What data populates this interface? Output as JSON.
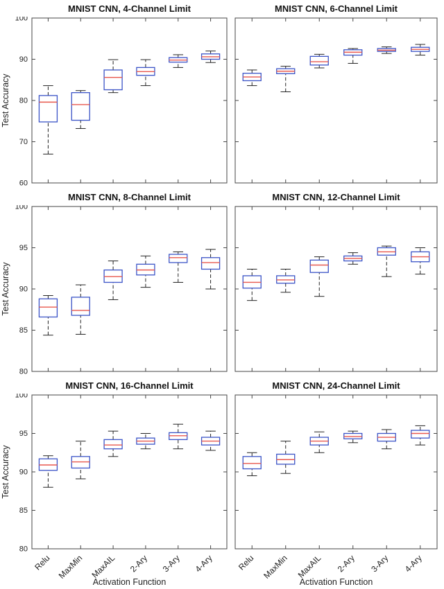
{
  "figure": {
    "xlabel": "Activation Function",
    "ylabel": "Test Accuracy",
    "categories": [
      "Relu",
      "MaxMin",
      "MaxAIL",
      "2-Ary",
      "3-Ary",
      "4-Ary"
    ],
    "colors": {
      "box": "#3a53c7",
      "median": "#e8574d",
      "whisker": "#222222",
      "frame": "#444444"
    }
  },
  "chart_data": [
    {
      "type": "boxplot",
      "title": "MNIST CNN, 4-Channel Limit",
      "ylabel": "Test Accuracy",
      "ylim": [
        60,
        100
      ],
      "yticks": [
        60,
        70,
        80,
        90,
        100
      ],
      "categories": [
        "Relu",
        "MaxMin",
        "MaxAIL",
        "2-Ary",
        "3-Ary",
        "4-Ary"
      ],
      "boxes": [
        {
          "label": "Relu",
          "whislo": 67.0,
          "q1": 74.8,
          "med": 79.6,
          "q3": 81.2,
          "whishi": 83.6
        },
        {
          "label": "MaxMin",
          "whislo": 73.2,
          "q1": 75.2,
          "med": 79.0,
          "q3": 81.9,
          "whishi": 82.4
        },
        {
          "label": "MaxAIL",
          "whislo": 81.9,
          "q1": 82.6,
          "med": 85.6,
          "q3": 87.4,
          "whishi": 89.9
        },
        {
          "label": "2-Ary",
          "whislo": 83.6,
          "q1": 86.1,
          "med": 87.0,
          "q3": 88.0,
          "whishi": 89.9
        },
        {
          "label": "3-Ary",
          "whislo": 88.0,
          "q1": 89.3,
          "med": 89.8,
          "q3": 90.4,
          "whishi": 91.1
        },
        {
          "label": "4-Ary",
          "whislo": 89.2,
          "q1": 90.0,
          "med": 90.6,
          "q3": 91.3,
          "whishi": 92.0
        }
      ]
    },
    {
      "type": "boxplot",
      "title": "MNIST CNN, 6-Channel Limit",
      "ylim": [
        60,
        100
      ],
      "yticks": [
        60,
        70,
        80,
        90,
        100
      ],
      "categories": [
        "Relu",
        "MaxMin",
        "MaxAIL",
        "2-Ary",
        "3-Ary",
        "4-Ary"
      ],
      "boxes": [
        {
          "label": "Relu",
          "whislo": 83.6,
          "q1": 84.8,
          "med": 85.7,
          "q3": 86.6,
          "whishi": 87.4
        },
        {
          "label": "MaxMin",
          "whislo": 82.1,
          "q1": 86.5,
          "med": 87.1,
          "q3": 87.7,
          "whishi": 88.3
        },
        {
          "label": "MaxAIL",
          "whislo": 87.9,
          "q1": 88.6,
          "med": 89.4,
          "q3": 90.7,
          "whishi": 91.2
        },
        {
          "label": "2-Ary",
          "whislo": 89.0,
          "q1": 91.0,
          "med": 91.7,
          "q3": 92.3,
          "whishi": 92.6
        },
        {
          "label": "3-Ary",
          "whislo": 91.4,
          "q1": 91.9,
          "med": 92.2,
          "q3": 92.6,
          "whishi": 93.0
        },
        {
          "label": "4-Ary",
          "whislo": 91.0,
          "q1": 91.9,
          "med": 92.4,
          "q3": 92.9,
          "whishi": 93.6
        }
      ]
    },
    {
      "type": "boxplot",
      "title": "MNIST CNN, 8-Channel Limit",
      "ylabel": "Test Accuracy",
      "ylim": [
        80,
        100
      ],
      "yticks": [
        80,
        85,
        90,
        95,
        100
      ],
      "categories": [
        "Relu",
        "MaxMin",
        "MaxAIL",
        "2-Ary",
        "3-Ary",
        "4-Ary"
      ],
      "boxes": [
        {
          "label": "Relu",
          "whislo": 84.4,
          "q1": 86.6,
          "med": 87.8,
          "q3": 88.8,
          "whishi": 89.2
        },
        {
          "label": "MaxMin",
          "whislo": 84.5,
          "q1": 86.8,
          "med": 87.4,
          "q3": 89.0,
          "whishi": 90.5
        },
        {
          "label": "MaxAIL",
          "whislo": 88.7,
          "q1": 90.8,
          "med": 91.5,
          "q3": 92.3,
          "whishi": 93.4
        },
        {
          "label": "2-Ary",
          "whislo": 90.2,
          "q1": 91.7,
          "med": 92.3,
          "q3": 93.0,
          "whishi": 94.0
        },
        {
          "label": "3-Ary",
          "whislo": 90.8,
          "q1": 93.2,
          "med": 93.8,
          "q3": 94.2,
          "whishi": 94.5
        },
        {
          "label": "4-Ary",
          "whislo": 90.0,
          "q1": 92.4,
          "med": 93.2,
          "q3": 93.8,
          "whishi": 94.8
        }
      ]
    },
    {
      "type": "boxplot",
      "title": "MNIST CNN, 12-Channel Limit",
      "ylim": [
        80,
        100
      ],
      "yticks": [
        80,
        85,
        90,
        95,
        100
      ],
      "categories": [
        "Relu",
        "MaxMin",
        "MaxAIL",
        "2-Ary",
        "3-Ary",
        "4-Ary"
      ],
      "boxes": [
        {
          "label": "Relu",
          "whislo": 88.6,
          "q1": 90.1,
          "med": 90.8,
          "q3": 91.6,
          "whishi": 92.4
        },
        {
          "label": "MaxMin",
          "whislo": 89.6,
          "q1": 90.7,
          "med": 91.1,
          "q3": 91.6,
          "whishi": 92.4
        },
        {
          "label": "MaxAIL",
          "whislo": 89.1,
          "q1": 92.0,
          "med": 92.9,
          "q3": 93.5,
          "whishi": 93.9
        },
        {
          "label": "2-Ary",
          "whislo": 93.0,
          "q1": 93.4,
          "med": 93.7,
          "q3": 94.0,
          "whishi": 94.4
        },
        {
          "label": "3-Ary",
          "whislo": 91.5,
          "q1": 94.1,
          "med": 94.5,
          "q3": 95.0,
          "whishi": 95.2
        },
        {
          "label": "4-Ary",
          "whislo": 91.8,
          "q1": 93.3,
          "med": 93.9,
          "q3": 94.5,
          "whishi": 95.0
        }
      ]
    },
    {
      "type": "boxplot",
      "title": "MNIST CNN, 16-Channel Limit",
      "ylabel": "Test Accuracy",
      "xlabel": "Activation Function",
      "ylim": [
        80,
        100
      ],
      "yticks": [
        80,
        85,
        90,
        95,
        100
      ],
      "categories": [
        "Relu",
        "MaxMin",
        "MaxAIL",
        "2-Ary",
        "3-Ary",
        "4-Ary"
      ],
      "boxes": [
        {
          "label": "Relu",
          "whislo": 88.0,
          "q1": 90.2,
          "med": 90.9,
          "q3": 91.7,
          "whishi": 92.1
        },
        {
          "label": "MaxMin",
          "whislo": 89.1,
          "q1": 90.5,
          "med": 91.3,
          "q3": 92.0,
          "whishi": 94.0
        },
        {
          "label": "MaxAIL",
          "whislo": 92.0,
          "q1": 93.0,
          "med": 93.5,
          "q3": 94.2,
          "whishi": 95.3
        },
        {
          "label": "2-Ary",
          "whislo": 93.0,
          "q1": 93.6,
          "med": 94.0,
          "q3": 94.4,
          "whishi": 95.0
        },
        {
          "label": "3-Ary",
          "whislo": 93.0,
          "q1": 94.2,
          "med": 94.7,
          "q3": 95.1,
          "whishi": 96.2
        },
        {
          "label": "4-Ary",
          "whislo": 92.8,
          "q1": 93.5,
          "med": 94.0,
          "q3": 94.5,
          "whishi": 95.3
        }
      ]
    },
    {
      "type": "boxplot",
      "title": "MNIST CNN, 24-Channel Limit",
      "xlabel": "Activation Function",
      "ylim": [
        80,
        100
      ],
      "yticks": [
        80,
        85,
        90,
        95,
        100
      ],
      "categories": [
        "Relu",
        "MaxMin",
        "MaxAIL",
        "2-Ary",
        "3-Ary",
        "4-Ary"
      ],
      "boxes": [
        {
          "label": "Relu",
          "whislo": 89.5,
          "q1": 90.4,
          "med": 91.1,
          "q3": 92.0,
          "whishi": 92.5
        },
        {
          "label": "MaxMin",
          "whislo": 89.8,
          "q1": 91.0,
          "med": 91.6,
          "q3": 92.3,
          "whishi": 94.0
        },
        {
          "label": "MaxAIL",
          "whislo": 92.5,
          "q1": 93.5,
          "med": 94.0,
          "q3": 94.5,
          "whishi": 95.2
        },
        {
          "label": "2-Ary",
          "whislo": 93.8,
          "q1": 94.3,
          "med": 94.6,
          "q3": 95.0,
          "whishi": 95.3
        },
        {
          "label": "3-Ary",
          "whislo": 93.0,
          "q1": 94.0,
          "med": 94.5,
          "q3": 95.0,
          "whishi": 95.5
        },
        {
          "label": "4-Ary",
          "whislo": 93.5,
          "q1": 94.4,
          "med": 95.0,
          "q3": 95.4,
          "whishi": 96.0
        }
      ]
    }
  ]
}
